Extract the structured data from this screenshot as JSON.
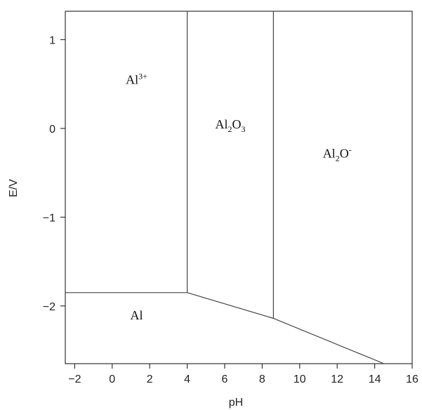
{
  "chart_data": {
    "type": "line",
    "title": "",
    "xlabel": "pH",
    "ylabel": "E/V",
    "xlim": [
      -2.5,
      16
    ],
    "ylim": [
      -2.65,
      1.32
    ],
    "x_ticks": [
      -2,
      0,
      2,
      4,
      6,
      8,
      10,
      12,
      14,
      16
    ],
    "y_ticks": [
      1,
      0,
      -1,
      -2
    ],
    "x_tick_labels": [
      "−2",
      "0",
      "2",
      "4",
      "6",
      "8",
      "10",
      "12",
      "14",
      "16"
    ],
    "y_tick_labels": [
      "1",
      "0",
      "−1",
      "−2"
    ],
    "grid": false,
    "boundaries": [
      {
        "points": [
          [
            -2.5,
            -1.85
          ],
          [
            4,
            -1.85
          ]
        ]
      },
      {
        "points": [
          [
            4,
            -1.85
          ],
          [
            8.6,
            -2.14
          ],
          [
            14.5,
            -2.65
          ]
        ]
      },
      {
        "points": [
          [
            4,
            -1.85
          ],
          [
            4,
            1.32
          ]
        ]
      },
      {
        "points": [
          [
            8.6,
            -2.14
          ],
          [
            8.6,
            1.32
          ]
        ]
      }
    ],
    "regions": [
      {
        "base": "Al",
        "sup": "3+",
        "sub": "",
        "tail": "",
        "x": 1.3,
        "y": 0.5
      },
      {
        "base": "Al",
        "sub": "2",
        "mid": "O",
        "sub2": "3",
        "sup": "",
        "x": 6.3,
        "y": 0.0
      },
      {
        "base": "Al",
        "sub": "2",
        "mid": "O",
        "sub2": "",
        "sup": "-",
        "x": 12.0,
        "y": -0.33
      },
      {
        "base": "Al",
        "sup": "",
        "sub": "",
        "tail": "",
        "x": 1.3,
        "y": -2.15
      }
    ]
  }
}
